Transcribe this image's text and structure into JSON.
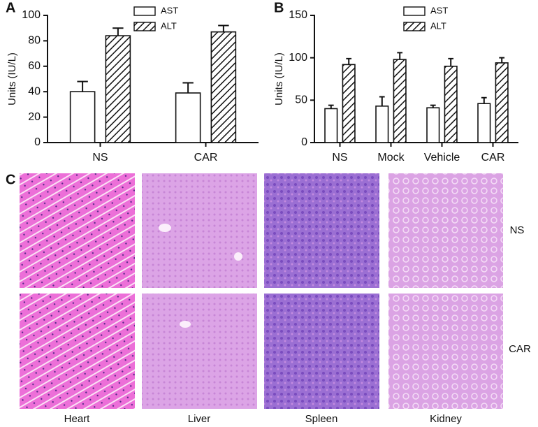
{
  "chart_data": [
    {
      "type": "bar",
      "panel_label": "A",
      "y_label": "Units (IU/L)",
      "categories": [
        "NS",
        "CAR"
      ],
      "series": [
        {
          "name": "AST",
          "color": "#ffffff",
          "values": [
            40,
            39
          ],
          "errors": [
            8,
            8
          ]
        },
        {
          "name": "ALT",
          "color": "hatch",
          "values": [
            84,
            87
          ],
          "errors": [
            6,
            5
          ]
        }
      ],
      "ylim": [
        0,
        100
      ],
      "yticks": [
        0,
        20,
        40,
        60,
        80,
        100
      ]
    },
    {
      "type": "bar",
      "panel_label": "B",
      "y_label": "Units (IU/L)",
      "categories": [
        "NS",
        "Mock",
        "Vehicle",
        "CAR"
      ],
      "series": [
        {
          "name": "AST",
          "color": "#ffffff",
          "values": [
            40,
            43,
            41,
            46
          ],
          "errors": [
            4,
            11,
            3,
            7
          ]
        },
        {
          "name": "ALT",
          "color": "hatch",
          "values": [
            92,
            98,
            90,
            94
          ],
          "errors": [
            7,
            8,
            9,
            6
          ]
        }
      ],
      "ylim": [
        0,
        150
      ],
      "yticks": [
        0,
        50,
        100,
        150
      ]
    }
  ],
  "panel_c": {
    "label": "C",
    "columns": [
      "Heart",
      "Liver",
      "Spleen",
      "Kidney"
    ],
    "rows": [
      "NS",
      "CAR"
    ]
  }
}
